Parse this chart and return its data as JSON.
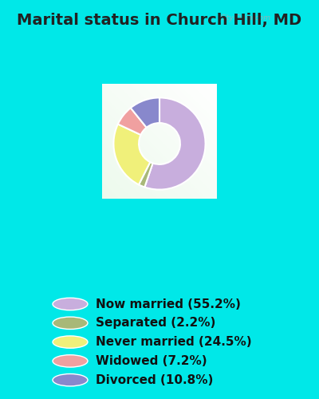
{
  "title": "Marital status in Church Hill, MD",
  "slices": [
    55.2,
    2.2,
    24.5,
    7.2,
    10.8
  ],
  "labels": [
    "Now married (55.2%)",
    "Separated (2.2%)",
    "Never married (24.5%)",
    "Widowed (7.2%)",
    "Divorced (10.8%)"
  ],
  "colors": [
    "#c8aedd",
    "#a8b878",
    "#f0f07a",
    "#f0a0a0",
    "#8888cc"
  ],
  "bg_color": "#00e8e8",
  "chart_bg_color": "#d0ead8",
  "title_fontsize": 14,
  "legend_fontsize": 11,
  "watermark": "City-Data.com",
  "donut_width": 0.55,
  "start_angle": 90
}
